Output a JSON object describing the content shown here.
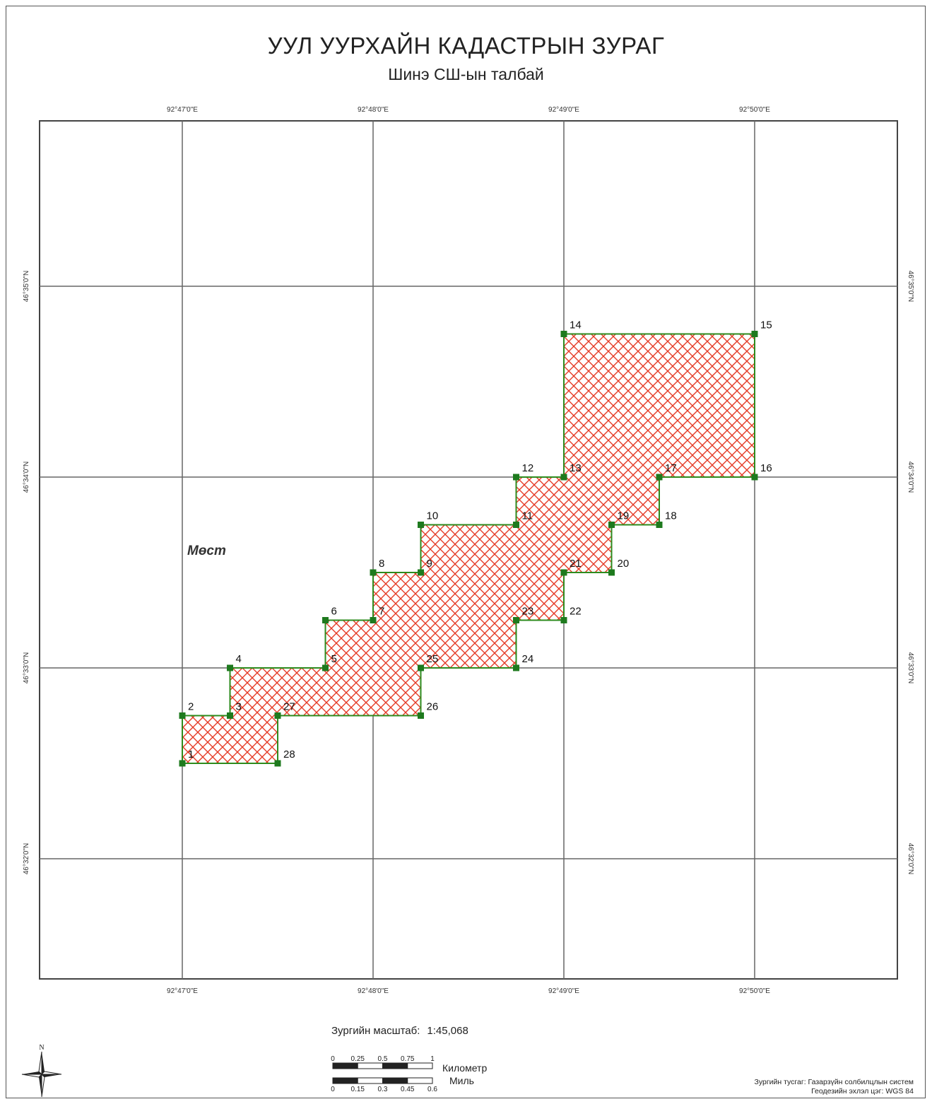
{
  "map": {
    "title": "УУЛ УУРХАЙН КАДАСТРЫН ЗУРАГ",
    "subtitle": "Шинэ СШ-ын талбай",
    "place_label": "Мөст",
    "lon_labels": [
      "92°47'0\"E",
      "92°48'0\"E",
      "92°49'0\"E",
      "92°50'0\"E"
    ],
    "lat_labels": [
      "46°35'0\"N",
      "46°34'0\"N",
      "46°33'0\"N",
      "46°32'0\"N"
    ],
    "parcel_fill": "#e53a26",
    "parcel_outline": "#2e8b1e",
    "vertex_color": "#1e7a1e",
    "parcel_vertices": [
      {
        "id": "1",
        "lon": 0.0,
        "lat": -0.5
      },
      {
        "id": "2",
        "lon": 0.0,
        "lat": -0.25
      },
      {
        "id": "3",
        "lon": 0.25,
        "lat": -0.25
      },
      {
        "id": "4",
        "lon": 0.25,
        "lat": 0.0
      },
      {
        "id": "5",
        "lon": 0.75,
        "lat": 0.0
      },
      {
        "id": "6",
        "lon": 0.75,
        "lat": 0.25
      },
      {
        "id": "7",
        "lon": 1.0,
        "lat": 0.25
      },
      {
        "id": "8",
        "lon": 1.0,
        "lat": 0.5
      },
      {
        "id": "9",
        "lon": 1.25,
        "lat": 0.5
      },
      {
        "id": "10",
        "lon": 1.25,
        "lat": 0.75
      },
      {
        "id": "11",
        "lon": 1.75,
        "lat": 0.75
      },
      {
        "id": "12",
        "lon": 1.75,
        "lat": 1.0
      },
      {
        "id": "13",
        "lon": 2.0,
        "lat": 1.0
      },
      {
        "id": "14",
        "lon": 2.0,
        "lat": 1.75
      },
      {
        "id": "15",
        "lon": 3.0,
        "lat": 1.75
      },
      {
        "id": "16",
        "lon": 3.0,
        "lat": 1.0
      },
      {
        "id": "17",
        "lon": 2.5,
        "lat": 1.0
      },
      {
        "id": "18",
        "lon": 2.5,
        "lat": 0.75
      },
      {
        "id": "19",
        "lon": 2.25,
        "lat": 0.75
      },
      {
        "id": "20",
        "lon": 2.25,
        "lat": 0.5
      },
      {
        "id": "21",
        "lon": 2.0,
        "lat": 0.5
      },
      {
        "id": "22",
        "lon": 2.0,
        "lat": 0.25
      },
      {
        "id": "23",
        "lon": 1.75,
        "lat": 0.25
      },
      {
        "id": "24",
        "lon": 1.75,
        "lat": 0.0
      },
      {
        "id": "25",
        "lon": 1.25,
        "lat": 0.0
      },
      {
        "id": "26",
        "lon": 1.25,
        "lat": -0.25
      },
      {
        "id": "27",
        "lon": 0.5,
        "lat": -0.25
      },
      {
        "id": "28",
        "lon": 0.5,
        "lat": -0.5
      }
    ]
  },
  "scale": {
    "label": "Зургийн масштаб:",
    "value": "1:45,068",
    "km_ticks": [
      "0",
      "0.25",
      "0.5",
      "0.75",
      "1"
    ],
    "km_unit": "Километр",
    "mile_ticks": [
      "0",
      "0.15",
      "0.3",
      "0.45",
      "0.6"
    ],
    "mile_unit": "Миль"
  },
  "north_arrow": {
    "letter": "N"
  },
  "credits": {
    "line1": "Зургийн тусгаг: Газарзүйн солбилцлын систем",
    "line2": "Геодезийн эхлэл цэг: WGS 84"
  }
}
